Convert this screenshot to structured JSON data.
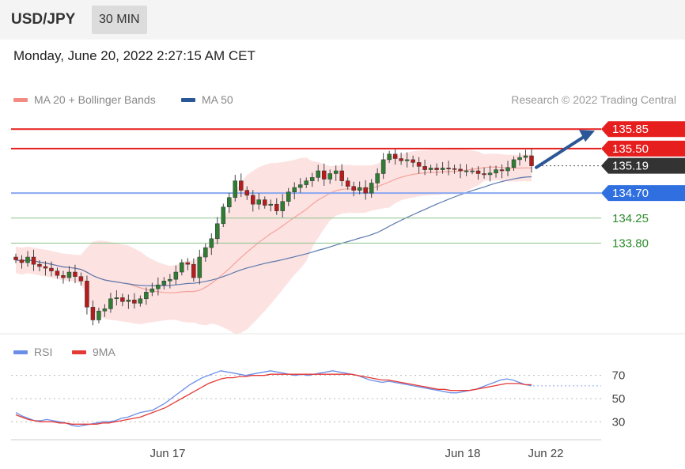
{
  "header": {
    "symbol": "USD/JPY",
    "timeframe": "30 MIN"
  },
  "datetime": "Monday, June 20, 2022 2:27:15 AM CET",
  "legend": {
    "ma20": {
      "label": "MA 20 + Bollinger Bands",
      "color": "#f28b82"
    },
    "ma50": {
      "label": "MA 50",
      "color": "#2b5797"
    }
  },
  "credit": "Research © 2022 Trading Central",
  "rsi_legend": {
    "rsi": {
      "label": "RSI",
      "color": "#6b8fe8"
    },
    "ma9": {
      "label": "9MA",
      "color": "#e53935"
    }
  },
  "chart_data": [
    {
      "type": "candlestick",
      "ylim": [
        132.2,
        136.18
      ],
      "colors": {
        "up": "#2e7d32",
        "down": "#b71c1c",
        "band": "#fde2e2",
        "ma20": "#f4a29a",
        "ma50": "#5b79ad"
      },
      "x_labels": [
        "Jun 17",
        "Jun 18",
        "Jun 22"
      ],
      "levels": [
        {
          "value": 135.85,
          "label": "135.85",
          "kind": "resistance",
          "color": "#e61e1e"
        },
        {
          "value": 135.5,
          "label": "135.50",
          "kind": "resistance",
          "color": "#e61e1e"
        },
        {
          "value": 135.19,
          "label": "135.19",
          "kind": "current",
          "color": "#333333"
        },
        {
          "value": 134.7,
          "label": "134.70",
          "kind": "pivot",
          "color": "#2f6fe0"
        },
        {
          "value": 134.25,
          "label": "134.25",
          "kind": "target",
          "color": "#2e8b2e"
        },
        {
          "value": 133.8,
          "label": "133.80",
          "kind": "target",
          "color": "#2e8b2e"
        }
      ],
      "closes": [
        133.5,
        133.45,
        133.55,
        133.42,
        133.38,
        133.35,
        133.3,
        133.22,
        133.18,
        133.28,
        133.2,
        133.12,
        132.65,
        132.42,
        132.58,
        132.62,
        132.8,
        132.82,
        132.75,
        132.78,
        132.72,
        132.8,
        132.92,
        132.98,
        133.05,
        133.12,
        133.15,
        133.28,
        133.45,
        133.42,
        133.18,
        133.55,
        133.72,
        133.88,
        134.15,
        134.45,
        134.62,
        134.92,
        134.75,
        134.66,
        134.5,
        134.58,
        134.48,
        134.5,
        134.38,
        134.55,
        134.72,
        134.8,
        134.85,
        134.92,
        134.98,
        135.1,
        134.95,
        135.05,
        135.1,
        134.92,
        134.82,
        134.75,
        134.8,
        134.7,
        134.88,
        135.05,
        135.3,
        135.4,
        135.32,
        135.28,
        135.3,
        135.25,
        135.18,
        135.12,
        135.15,
        135.12,
        135.15,
        135.14,
        135.13,
        135.1,
        135.1,
        135.1,
        135.05,
        135.03,
        135.06,
        135.12,
        135.1,
        135.16,
        135.3,
        135.34,
        135.37,
        135.19
      ]
    },
    {
      "type": "line",
      "ylim": [
        20,
        80
      ],
      "yticks": [
        30,
        50,
        70
      ],
      "series": [
        {
          "name": "RSI",
          "values": [
            38,
            35,
            33,
            31,
            31,
            32,
            31,
            30,
            29,
            27,
            26,
            27,
            28,
            29,
            30,
            30,
            31,
            33,
            34,
            36,
            38,
            39,
            40,
            43,
            46,
            50,
            54,
            58,
            62,
            65,
            68,
            70,
            72,
            74,
            73,
            72,
            71,
            70,
            71,
            72,
            73,
            74,
            73,
            72,
            71,
            70,
            71,
            70,
            71,
            72,
            73,
            74,
            73,
            72,
            71,
            70,
            68,
            66,
            65,
            64,
            65,
            64,
            63,
            62,
            61,
            60,
            59,
            58,
            57,
            56,
            55,
            55,
            56,
            57,
            58,
            60,
            62,
            64,
            66,
            67,
            66,
            64,
            62,
            61
          ]
        },
        {
          "name": "9MA",
          "values": [
            36,
            34,
            32,
            31,
            30,
            30,
            30,
            29,
            29,
            28,
            28,
            28,
            28,
            28,
            29,
            29,
            30,
            31,
            32,
            33,
            34,
            36,
            38,
            40,
            42,
            45,
            48,
            51,
            54,
            57,
            60,
            63,
            65,
            67,
            68,
            68,
            69,
            69,
            70,
            70,
            70,
            71,
            71,
            71,
            71,
            71,
            71,
            71,
            71,
            71,
            71,
            71,
            71,
            71,
            71,
            70,
            69,
            68,
            67,
            66,
            66,
            65,
            64,
            63,
            62,
            61,
            60,
            59,
            58,
            58,
            57,
            57,
            57,
            57,
            58,
            59,
            60,
            61,
            62,
            63,
            63,
            63,
            62,
            62
          ]
        }
      ]
    }
  ]
}
